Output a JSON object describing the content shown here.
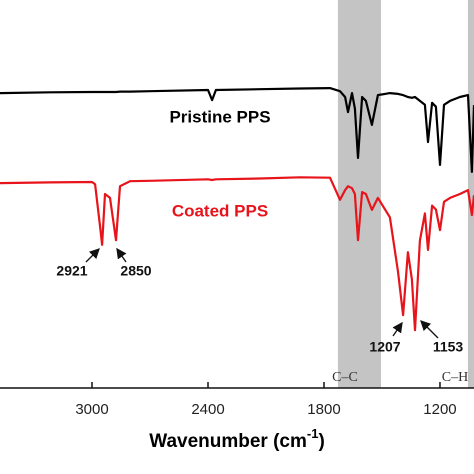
{
  "chart_data": {
    "type": "line",
    "xlabel": "Wavenumber (cm",
    "xlabel_sup": "-1",
    "xlabel_end": ")",
    "x": [
      3476,
      3217,
      3000,
      2984,
      2959,
      2948,
      2933,
      2907,
      2876,
      2855,
      2803,
      2700,
      2400,
      2379,
      2359,
      2131,
      1924,
      1769,
      1717,
      1691,
      1676,
      1655,
      1640,
      1624,
      1603,
      1583,
      1552,
      1521,
      1459,
      1417,
      1391,
      1366,
      1345,
      1329,
      1304,
      1278,
      1262,
      1241,
      1221,
      1200,
      1179,
      1148,
      1097,
      1055,
      1035,
      1024
    ],
    "series": [
      {
        "name": "Pristine PPS",
        "color": "#000000",
        "values": [
          76.0,
          76.2,
          76.3,
          76.3,
          76.3,
          76.3,
          76.3,
          76.3,
          76.3,
          76.4,
          76.4,
          76.5,
          76.8,
          74.2,
          76.8,
          77.0,
          77.2,
          77.3,
          76.5,
          75.0,
          71.1,
          76.0,
          72.0,
          59.3,
          75.0,
          74.0,
          67.8,
          75.5,
          76.0,
          75.8,
          75.5,
          75.0,
          74.8,
          75.0,
          74.0,
          73.0,
          63.4,
          73.5,
          72.5,
          57.5,
          73.0,
          74.0,
          75.0,
          75.5,
          55.7,
          72.9
        ]
      },
      {
        "name": "Coated PPS",
        "color": "#e8141b",
        "values": [
          52.8,
          53.0,
          53.1,
          52.5,
          42.0,
          36.9,
          50.0,
          49.0,
          38.1,
          52.0,
          53.3,
          53.4,
          53.8,
          53.6,
          53.8,
          54.0,
          54.3,
          54.2,
          48.5,
          51.0,
          52.0,
          51.5,
          50.0,
          38.1,
          50.5,
          50.0,
          45.9,
          49.0,
          44.0,
          30.0,
          18.8,
          35.0,
          28.0,
          14.9,
          38.0,
          45.0,
          35.6,
          47.0,
          46.0,
          40.7,
          48.0,
          49.0,
          50.0,
          51.0,
          44.6,
          49.7
        ]
      }
    ],
    "xlim": [
      3476,
      1024
    ],
    "xticks": [
      3000,
      2400,
      1800,
      1200
    ],
    "ylim": [
      0,
      100
    ],
    "bands": [
      {
        "from": 1728,
        "to": 1505
      },
      {
        "from": 1055,
        "to": 1024
      }
    ],
    "band_color": "#c4c4c4",
    "annotations": [
      "C–C",
      "C–H",
      "2921",
      "2850",
      "1207",
      "1153"
    ]
  }
}
